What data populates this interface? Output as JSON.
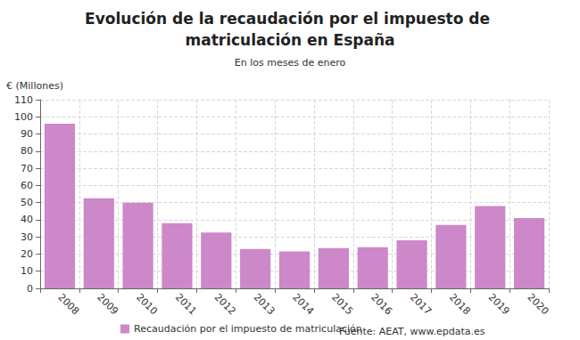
{
  "chart_data": {
    "type": "bar",
    "title": "Evolución de la recaudación por el impuesto de matriculación en España",
    "subtitle": "En los meses de enero",
    "y_label": "€ (Millones)",
    "source": "Fuente: AEAT, www.epdata.es",
    "categories": [
      "2008",
      "2009",
      "2010",
      "2011",
      "2012",
      "2013",
      "2014",
      "2015",
      "2016",
      "2017",
      "2018",
      "2019",
      "2020"
    ],
    "series": [
      {
        "name": "Recaudación por el impuesto de matriculación",
        "color": "#cc88c8",
        "values": [
          96,
          52.5,
          50,
          38,
          32.5,
          23,
          21.5,
          23.5,
          24,
          28,
          37,
          48,
          41
        ]
      }
    ],
    "ylim": [
      0,
      110
    ],
    "yticks": [
      0,
      10,
      20,
      30,
      40,
      50,
      60,
      70,
      80,
      90,
      100,
      110
    ],
    "grid": true,
    "legend": "bottom"
  }
}
